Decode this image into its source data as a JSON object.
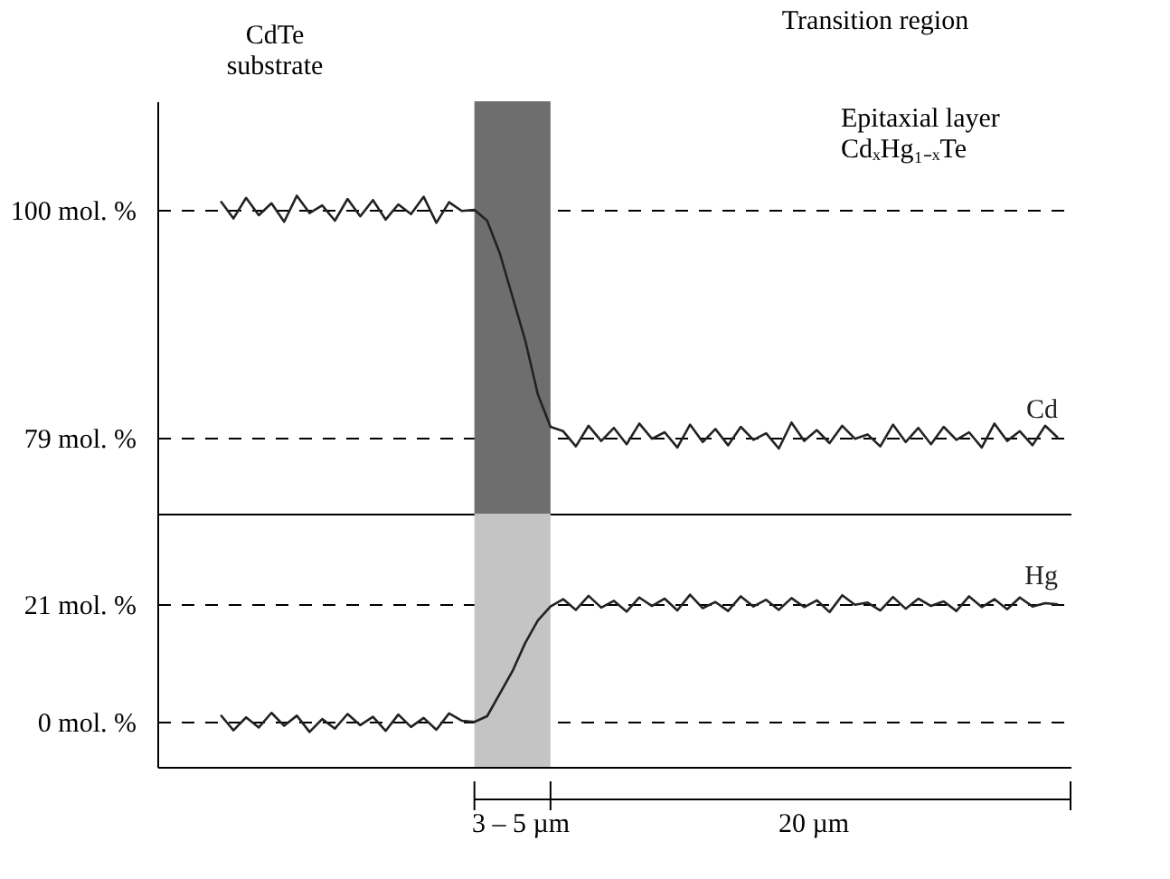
{
  "chart_data": [
    {
      "type": "line",
      "ylim": [
        72,
        110
      ],
      "yticks": [
        {
          "value": 100,
          "label": "100 mol. %"
        },
        {
          "value": 79,
          "label": "79 mol. %"
        }
      ],
      "tick_labels": "y",
      "grid": "y",
      "legend": false,
      "categories": [
        null,
        null,
        null,
        null,
        null,
        null,
        null,
        null,
        null,
        null,
        null,
        null,
        null,
        null,
        null,
        null,
        null,
        null,
        null,
        null,
        null,
        null,
        null,
        null,
        null,
        null,
        null,
        null,
        null,
        null,
        null,
        null,
        null,
        null,
        null,
        null,
        null,
        null,
        null,
        null,
        null,
        null,
        null,
        null,
        null,
        null,
        null,
        null,
        null,
        null,
        null,
        null,
        null,
        null,
        null,
        null,
        null,
        null,
        null,
        null,
        null,
        null,
        null,
        null,
        null,
        null,
        null
      ],
      "series": [
        {
          "name": "Cd",
          "color": "#222222",
          "values": [
            100.8,
            99.2,
            101.1,
            99.5,
            100.6,
            98.9,
            101.3,
            99.7,
            100.4,
            99.0,
            101.0,
            99.4,
            100.9,
            99.1,
            100.5,
            99.6,
            101.2,
            98.8,
            100.7,
            99.9,
            100,
            99,
            96,
            92,
            88,
            83,
            80,
            79.6,
            78.2,
            80.1,
            78.7,
            79.9,
            78.4,
            80.3,
            78.9,
            79.5,
            78.1,
            80.2,
            78.6,
            79.8,
            78.3,
            80.0,
            78.8,
            79.4,
            78.0,
            80.4,
            78.7,
            79.7,
            78.5,
            80.1,
            78.9,
            79.3,
            78.2,
            80.2,
            78.6,
            79.9,
            78.4,
            80.0,
            78.8,
            79.5,
            78.1,
            80.3,
            78.7,
            79.6,
            78.3,
            80.1,
            79.0
          ]
        }
      ],
      "annotations": [
        "CdTe\nsubstrate",
        "Transition region",
        "Epitaxial layer\nCdₓHg₁₋ₓTe"
      ]
    },
    {
      "type": "line",
      "ylim": [
        -8,
        37
      ],
      "yticks": [
        {
          "value": 21,
          "label": "21 mol. %"
        },
        {
          "value": 0,
          "label": "0 mol. %"
        }
      ],
      "tick_labels": "y",
      "grid": "y",
      "legend": false,
      "categories": [
        null,
        null,
        null,
        null,
        null,
        null,
        null,
        null,
        null,
        null,
        null,
        null,
        null,
        null,
        null,
        null,
        null,
        null,
        null,
        null,
        null,
        null,
        null,
        null,
        null,
        null,
        null,
        null,
        null,
        null,
        null,
        null,
        null,
        null,
        null,
        null,
        null,
        null,
        null,
        null,
        null,
        null,
        null,
        null,
        null,
        null,
        null,
        null,
        null,
        null,
        null,
        null,
        null,
        null,
        null,
        null,
        null,
        null,
        null,
        null,
        null,
        null,
        null,
        null,
        null,
        null,
        null
      ],
      "series": [
        {
          "name": "Hg",
          "color": "#222222",
          "values": [
            1.2,
            -1.5,
            0.8,
            -1.0,
            1.6,
            -0.7,
            1.1,
            -1.8,
            0.5,
            -1.2,
            1.4,
            -0.6,
            0.9,
            -1.6,
            1.3,
            -0.9,
            0.7,
            -1.4,
            1.5,
            0.2,
            0,
            1,
            5,
            9,
            14,
            18,
            20.5,
            21.8,
            19.9,
            22.4,
            20.3,
            21.5,
            19.6,
            22.1,
            20.6,
            21.9,
            19.8,
            22.6,
            20.2,
            21.3,
            19.7,
            22.3,
            20.5,
            21.7,
            19.9,
            22.0,
            20.4,
            21.6,
            19.5,
            22.5,
            20.8,
            21.2,
            19.8,
            22.2,
            20.1,
            21.9,
            20.6,
            21.4,
            19.7,
            22.3,
            20.4,
            21.8,
            20.0,
            22.1,
            20.5,
            21.1,
            20.9
          ]
        }
      ],
      "annotations": [
        "3 – 5 µm",
        "20 µm"
      ]
    }
  ]
}
